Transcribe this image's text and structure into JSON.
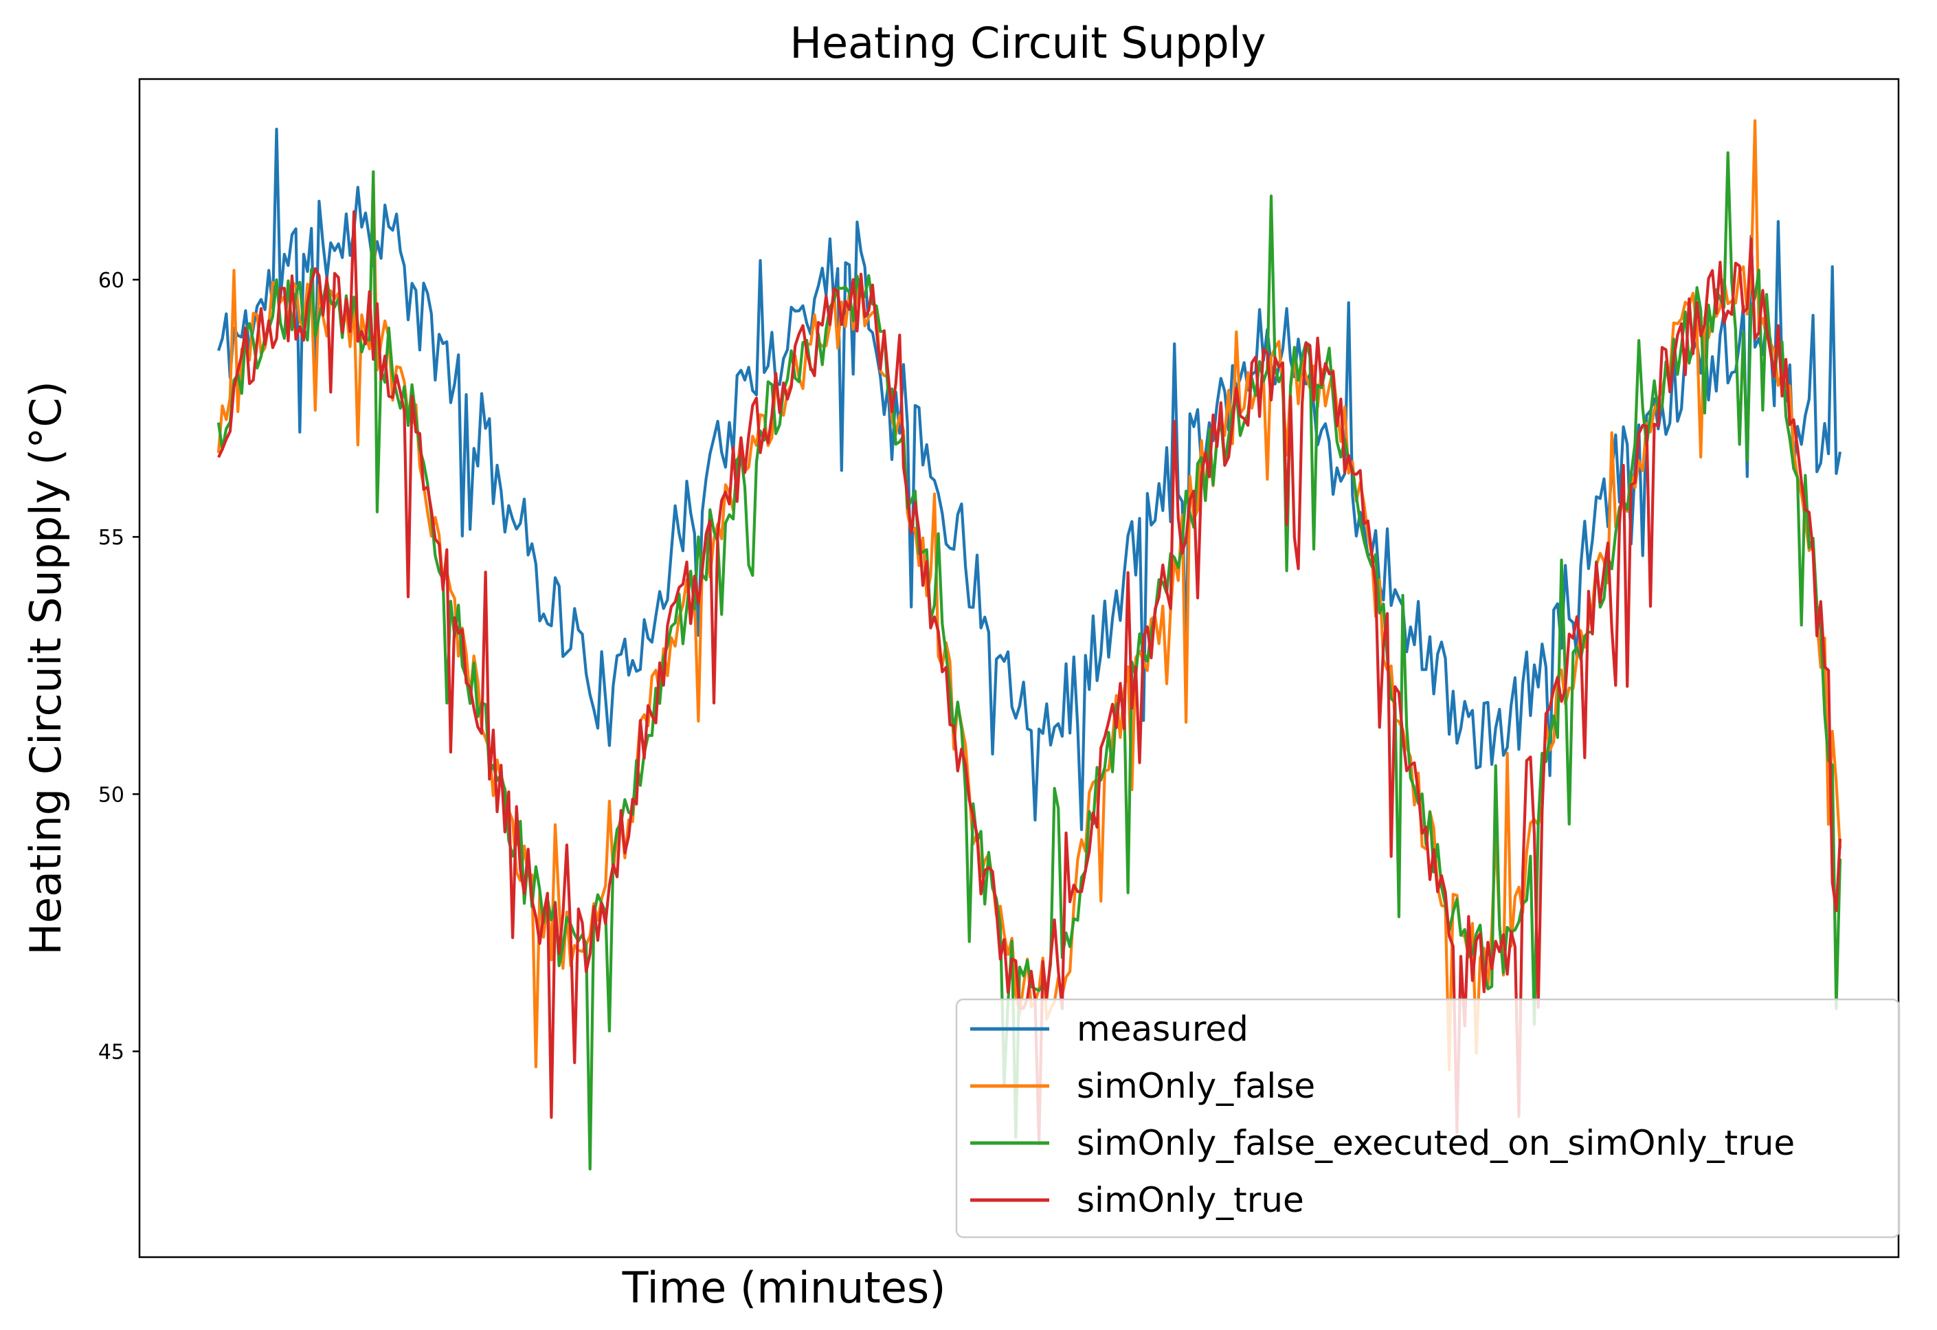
{
  "chart_data": {
    "type": "line",
    "title": "Heating Circuit Supply",
    "xlabel": "Time (minutes)",
    "ylabel": "Heating Circuit Supply (°C)",
    "ylim": [
      41,
      63.9
    ],
    "yticks": [
      45,
      50,
      55,
      60
    ],
    "xticks": [],
    "grid": false,
    "legend_position": "lower-right",
    "n_points": 420,
    "series": [
      {
        "name": "measured",
        "color": "#1f77b4",
        "keypoints": [
          [
            0,
            58.6
          ],
          [
            12,
            59.2
          ],
          [
            28,
            60.4
          ],
          [
            50,
            61.2
          ],
          [
            62,
            61.0
          ],
          [
            72,
            59.3
          ],
          [
            85,
            58.2
          ],
          [
            100,
            56.3
          ],
          [
            115,
            54.3
          ],
          [
            130,
            52.8
          ],
          [
            142,
            51.6
          ],
          [
            152,
            53.1
          ],
          [
            165,
            54.8
          ],
          [
            180,
            56.8
          ],
          [
            200,
            58.6
          ],
          [
            220,
            60.1
          ],
          [
            230,
            60.7
          ],
          [
            240,
            58.6
          ],
          [
            255,
            56.6
          ],
          [
            270,
            54.6
          ],
          [
            285,
            52.3
          ],
          [
            300,
            51.3
          ],
          [
            315,
            52.6
          ],
          [
            330,
            54.6
          ],
          [
            345,
            56.3
          ],
          [
            360,
            57.6
          ],
          [
            375,
            58.6
          ],
          [
            385,
            58.9
          ],
          [
            395,
            57.6
          ],
          [
            410,
            55.6
          ],
          [
            420,
            54.6
          ],
          [
            430,
            53.3
          ],
          [
            445,
            51.8
          ],
          [
            460,
            50.8
          ],
          [
            475,
            52.3
          ],
          [
            490,
            54.1
          ],
          [
            505,
            56.3
          ],
          [
            520,
            57.6
          ],
          [
            540,
            58.6
          ],
          [
            550,
            58.9
          ],
          [
            560,
            58.3
          ],
          [
            575,
            56.8
          ],
          [
            585,
            56.3
          ]
        ],
        "noise": 0.85,
        "spike_prob": 0.06,
        "spike_mag": 3.2,
        "seed": 11
      },
      {
        "name": "simOnly_false",
        "color": "#ff7f0e",
        "keypoints": [
          [
            0,
            57.2
          ],
          [
            18,
            59.3
          ],
          [
            40,
            59.6
          ],
          [
            55,
            59.0
          ],
          [
            70,
            57.6
          ],
          [
            80,
            54.8
          ],
          [
            90,
            52.6
          ],
          [
            100,
            50.3
          ],
          [
            110,
            48.6
          ],
          [
            120,
            47.3
          ],
          [
            130,
            47.1
          ],
          [
            140,
            47.6
          ],
          [
            150,
            50.3
          ],
          [
            160,
            52.6
          ],
          [
            175,
            54.6
          ],
          [
            190,
            56.6
          ],
          [
            205,
            58.1
          ],
          [
            225,
            59.3
          ],
          [
            235,
            59.6
          ],
          [
            245,
            57.1
          ],
          [
            255,
            54.3
          ],
          [
            265,
            51.6
          ],
          [
            275,
            48.8
          ],
          [
            285,
            46.6
          ],
          [
            295,
            46.1
          ],
          [
            305,
            46.6
          ],
          [
            315,
            49.6
          ],
          [
            325,
            51.6
          ],
          [
            340,
            53.6
          ],
          [
            355,
            56.3
          ],
          [
            370,
            57.8
          ],
          [
            385,
            58.3
          ],
          [
            400,
            58.1
          ],
          [
            410,
            56.3
          ],
          [
            420,
            53.3
          ],
          [
            430,
            50.6
          ],
          [
            440,
            48.3
          ],
          [
            450,
            47.1
          ],
          [
            460,
            46.8
          ],
          [
            470,
            47.6
          ],
          [
            480,
            51.3
          ],
          [
            495,
            53.6
          ],
          [
            510,
            56.3
          ],
          [
            525,
            58.6
          ],
          [
            540,
            59.6
          ],
          [
            555,
            59.6
          ],
          [
            565,
            58.1
          ],
          [
            575,
            54.6
          ],
          [
            585,
            49.6
          ]
        ],
        "noise": 0.7,
        "spike_prob": 0.05,
        "spike_mag": 3.0,
        "seed": 23
      },
      {
        "name": "simOnly_false_executed_on_simOnly_true",
        "color": "#2ca02c",
        "keypoints": [
          [
            0,
            57.2
          ],
          [
            18,
            59.3
          ],
          [
            40,
            59.6
          ],
          [
            55,
            59.0
          ],
          [
            70,
            57.6
          ],
          [
            80,
            54.8
          ],
          [
            90,
            52.6
          ],
          [
            100,
            50.3
          ],
          [
            110,
            48.6
          ],
          [
            120,
            47.3
          ],
          [
            130,
            47.1
          ],
          [
            140,
            47.6
          ],
          [
            150,
            50.3
          ],
          [
            160,
            52.6
          ],
          [
            175,
            54.6
          ],
          [
            190,
            56.6
          ],
          [
            205,
            58.1
          ],
          [
            225,
            59.3
          ],
          [
            235,
            59.6
          ],
          [
            245,
            57.1
          ],
          [
            255,
            54.3
          ],
          [
            265,
            51.6
          ],
          [
            275,
            48.8
          ],
          [
            285,
            46.6
          ],
          [
            295,
            46.1
          ],
          [
            305,
            46.6
          ],
          [
            315,
            49.6
          ],
          [
            325,
            51.6
          ],
          [
            340,
            53.6
          ],
          [
            355,
            56.3
          ],
          [
            370,
            57.8
          ],
          [
            385,
            58.3
          ],
          [
            400,
            58.1
          ],
          [
            410,
            56.3
          ],
          [
            420,
            53.3
          ],
          [
            430,
            50.6
          ],
          [
            440,
            48.3
          ],
          [
            450,
            47.1
          ],
          [
            460,
            46.8
          ],
          [
            470,
            47.6
          ],
          [
            480,
            51.3
          ],
          [
            495,
            53.6
          ],
          [
            510,
            56.3
          ],
          [
            525,
            58.6
          ],
          [
            540,
            59.6
          ],
          [
            555,
            59.6
          ],
          [
            565,
            58.1
          ],
          [
            575,
            54.6
          ],
          [
            585,
            48.6
          ]
        ],
        "noise": 0.7,
        "spike_prob": 0.07,
        "spike_mag": 3.6,
        "seed": 37
      },
      {
        "name": "simOnly_true",
        "color": "#d62728",
        "keypoints": [
          [
            0,
            57.2
          ],
          [
            18,
            59.3
          ],
          [
            40,
            59.6
          ],
          [
            55,
            59.0
          ],
          [
            70,
            57.6
          ],
          [
            80,
            54.8
          ],
          [
            90,
            52.6
          ],
          [
            100,
            50.3
          ],
          [
            110,
            48.6
          ],
          [
            120,
            47.3
          ],
          [
            130,
            47.1
          ],
          [
            140,
            47.6
          ],
          [
            150,
            50.3
          ],
          [
            160,
            52.6
          ],
          [
            175,
            54.6
          ],
          [
            190,
            56.6
          ],
          [
            205,
            58.1
          ],
          [
            225,
            59.3
          ],
          [
            235,
            59.6
          ],
          [
            245,
            57.1
          ],
          [
            255,
            54.3
          ],
          [
            265,
            51.6
          ],
          [
            275,
            48.8
          ],
          [
            285,
            46.6
          ],
          [
            295,
            46.1
          ],
          [
            305,
            46.6
          ],
          [
            315,
            49.6
          ],
          [
            325,
            51.6
          ],
          [
            340,
            53.6
          ],
          [
            355,
            56.3
          ],
          [
            370,
            57.8
          ],
          [
            385,
            58.3
          ],
          [
            400,
            58.1
          ],
          [
            410,
            56.3
          ],
          [
            420,
            53.3
          ],
          [
            430,
            50.6
          ],
          [
            440,
            48.3
          ],
          [
            450,
            47.1
          ],
          [
            460,
            46.8
          ],
          [
            470,
            47.6
          ],
          [
            480,
            51.3
          ],
          [
            495,
            53.6
          ],
          [
            510,
            56.3
          ],
          [
            525,
            58.6
          ],
          [
            540,
            59.6
          ],
          [
            555,
            59.6
          ],
          [
            565,
            58.1
          ],
          [
            575,
            54.6
          ],
          [
            585,
            49.8
          ]
        ],
        "noise": 0.75,
        "spike_prob": 0.05,
        "spike_mag": 3.4,
        "seed": 53
      }
    ]
  }
}
